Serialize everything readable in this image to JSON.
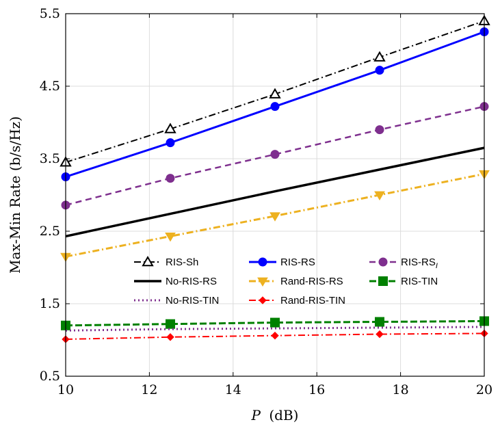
{
  "chart_data": {
    "type": "line",
    "xlabel_italic": "P",
    "xlabel_rest": "(dB)",
    "ylabel": "Max-Min Rate (b/s/Hz)",
    "xlim": [
      10,
      20
    ],
    "ylim": [
      0.5,
      5.5
    ],
    "grid": true,
    "legend_position": "lower-middle",
    "x_ticks": [
      10,
      12,
      14,
      16,
      18,
      20
    ],
    "x_tick_labels": [
      "10",
      "12",
      "14",
      "16",
      "18",
      "20"
    ],
    "y_ticks": [
      0.5,
      1.5,
      2.5,
      3.5,
      4.5,
      5.5
    ],
    "y_tick_labels": [
      "0.5",
      "1.5",
      "2.5",
      "3.5",
      "4.5",
      "5.5"
    ],
    "x": [
      10,
      12.5,
      15,
      17.5,
      20
    ],
    "series": [
      {
        "name": "RIS-Sh",
        "values": [
          3.45,
          3.91,
          4.39,
          4.9,
          5.4
        ],
        "color": "#000000",
        "dash": "10,4,2,4",
        "width": 2,
        "marker": "triangle-open"
      },
      {
        "name": "RIS-RS",
        "values": [
          3.25,
          3.72,
          4.22,
          4.72,
          5.25
        ],
        "color": "#0000ff",
        "dash": "",
        "width": 3,
        "marker": "circle"
      },
      {
        "name": "RIS-RS",
        "subscript": "I",
        "values": [
          2.86,
          3.23,
          3.56,
          3.9,
          4.22
        ],
        "color": "#7e2f8e",
        "dash": "9,6",
        "width": 2.5,
        "marker": "circle"
      },
      {
        "name": "No-RIS-RS",
        "values": [
          2.43,
          2.74,
          3.05,
          3.35,
          3.65
        ],
        "color": "#000000",
        "dash": "",
        "width": 3.5,
        "marker": "none"
      },
      {
        "name": "Rand-RIS-RS",
        "values": [
          2.15,
          2.43,
          2.71,
          3.0,
          3.29
        ],
        "color": "#edb120",
        "dash": "10,4,2,4",
        "width": 3,
        "marker": "triangle-down"
      },
      {
        "name": "RIS-TIN",
        "values": [
          1.2,
          1.22,
          1.24,
          1.25,
          1.26
        ],
        "color": "#008000",
        "dash": "10,4",
        "width": 3,
        "marker": "square"
      },
      {
        "name": "No-RIS-TIN",
        "values": [
          1.13,
          1.15,
          1.16,
          1.17,
          1.18
        ],
        "color": "#7e2f8e",
        "dash": "2,4",
        "width": 3,
        "marker": "none"
      },
      {
        "name": "Rand-RIS-TIN",
        "values": [
          1.01,
          1.04,
          1.06,
          1.08,
          1.09
        ],
        "color": "#ff0000",
        "dash": "10,4,2,4",
        "width": 2,
        "marker": "diamond"
      }
    ]
  }
}
